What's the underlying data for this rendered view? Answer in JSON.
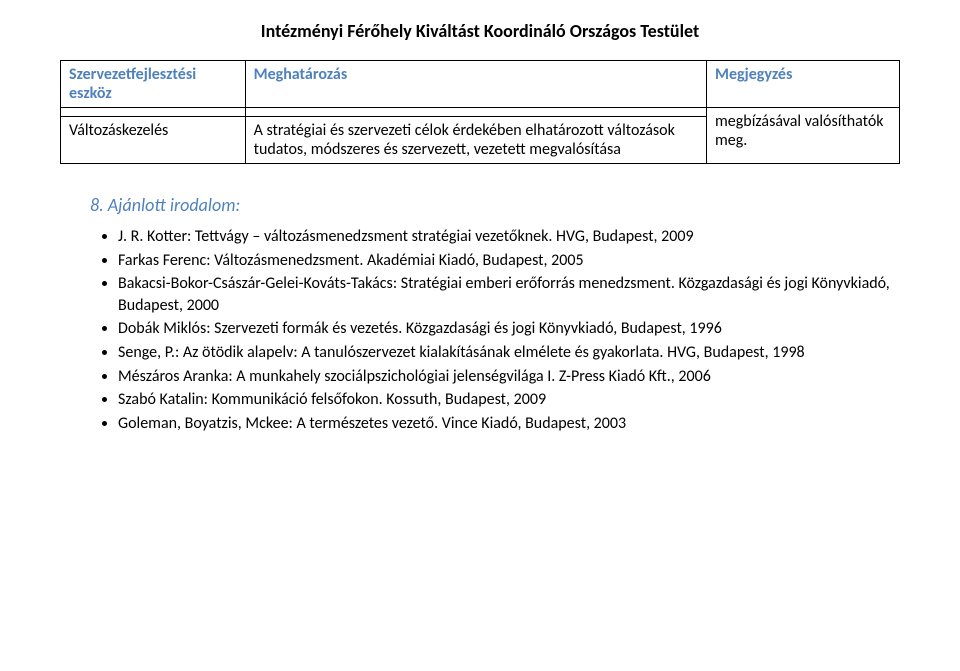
{
  "header": {
    "title": "Intézményi Férőhely Kiváltást Koordináló Országos Testület"
  },
  "table": {
    "columns": [
      "Szervezetfejlesztési eszköz",
      "Meghatározás",
      "Megjegyzés"
    ],
    "rows": [
      [
        "",
        "",
        "megbízásával valósíthatók meg."
      ],
      [
        "Változáskezelés",
        "A stratégiai és szervezeti célok érdekében elhatározott változások tudatos, módszeres és szervezett, vezetett megvalósítása",
        ""
      ]
    ],
    "col_widths": [
      "22%",
      "55%",
      "23%"
    ]
  },
  "section": {
    "number": "8.",
    "title": "Ajánlott irodalom:"
  },
  "references": [
    "J. R. Kotter: Tettvágy – változásmenedzsment stratégiai vezetőknek. HVG, Budapest, 2009",
    "Farkas Ferenc: Változásmenedzsment. Akadémiai Kiadó, Budapest, 2005",
    "Bakacsi-Bokor-Császár-Gelei-Kováts-Takács: Stratégiai emberi erőforrás menedzsment. Közgazdasági és jogi Könyvkiadó, Budapest, 2000",
    "Dobák Miklós: Szervezeti formák és vezetés. Közgazdasági és jogi Könyvkiadó, Budapest, 1996",
    "Senge, P.: Az ötödik alapelv: A tanulószervezet kialakításának elmélete és gyakorlata. HVG, Budapest, 1998",
    "Mészáros Aranka: A munkahely szociálpszichológiai jelenségvilága I. Z-Press Kiadó Kft., 2006",
    "Szabó Katalin: Kommunikáció felsőfokon. Kossuth, Budapest, 2009",
    "Goleman, Boyatzis, Mckee: A természetes vezető. Vince Kiadó, Budapest, 2003"
  ]
}
